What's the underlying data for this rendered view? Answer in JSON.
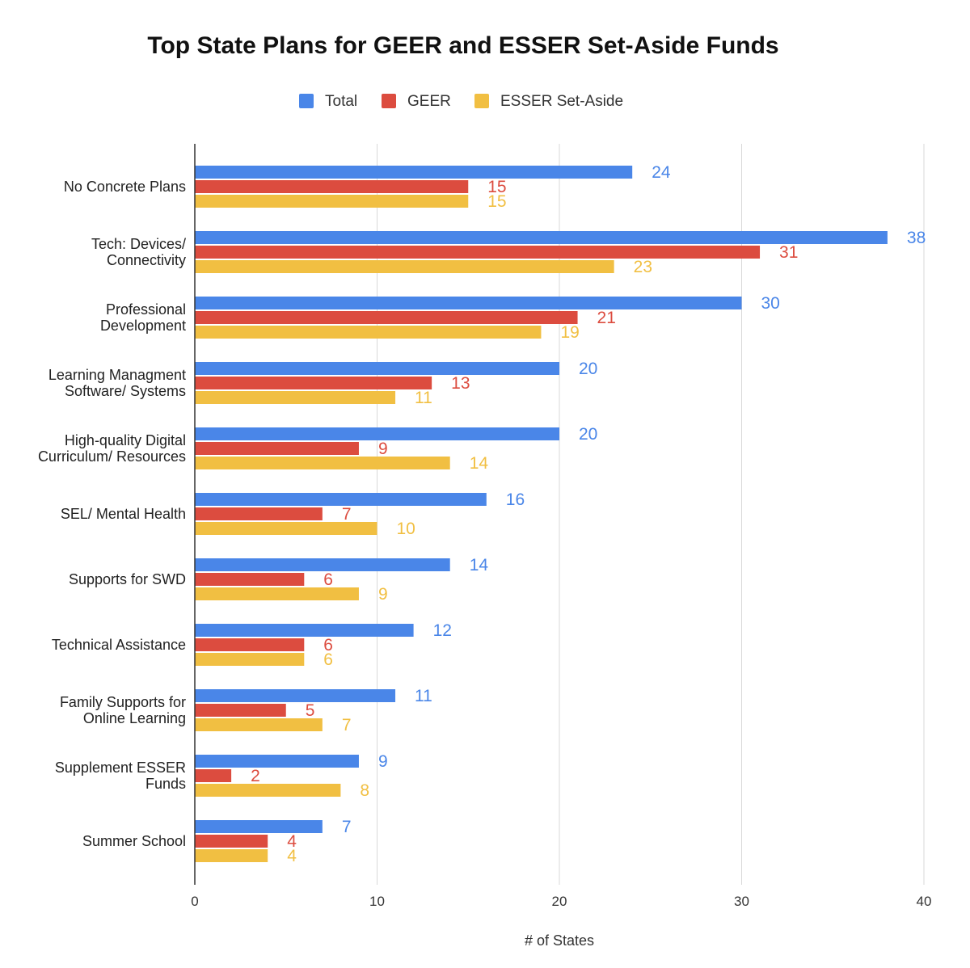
{
  "chart_data": {
    "type": "bar",
    "orientation": "horizontal",
    "title": "Top State Plans for GEER and ESSER Set-Aside Funds",
    "xlabel": "# of States",
    "ylabel": "",
    "xlim": [
      0,
      40
    ],
    "xticks": [
      "0",
      "10",
      "20",
      "30",
      "40"
    ],
    "grid": true,
    "legend_position": "top-center",
    "categories": [
      [
        "No Concrete Plans"
      ],
      [
        "Tech: Devices/",
        "Connectivity"
      ],
      [
        "Professional",
        "Development"
      ],
      [
        "Learning Managment",
        "Software/ Systems"
      ],
      [
        "High-quality Digital",
        "Curriculum/ Resources"
      ],
      [
        "SEL/ Mental Health"
      ],
      [
        "Supports for SWD"
      ],
      [
        "Technical Assistance"
      ],
      [
        "Family Supports for",
        "Online Learning"
      ],
      [
        "Supplement ESSER",
        "Funds"
      ],
      [
        "Summer School"
      ]
    ],
    "series": [
      {
        "name": "Total",
        "color": "#4a86e8",
        "values": [
          24,
          38,
          30,
          20,
          20,
          16,
          14,
          12,
          11,
          9,
          7
        ]
      },
      {
        "name": "GEER",
        "color": "#dc4c3f",
        "values": [
          15,
          31,
          21,
          13,
          9,
          7,
          6,
          6,
          5,
          2,
          4
        ]
      },
      {
        "name": "ESSER Set-Aside",
        "color": "#f1bf42",
        "values": [
          15,
          23,
          19,
          11,
          14,
          10,
          9,
          6,
          7,
          8,
          4
        ]
      }
    ]
  }
}
